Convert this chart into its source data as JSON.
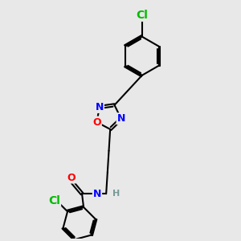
{
  "bg_color": "#e8e8e8",
  "bond_color": "#000000",
  "bond_width": 1.5,
  "dbo": 0.055,
  "atom_colors": {
    "N": "#0000ff",
    "O": "#ff0000",
    "Cl": "#00bb00",
    "H": "#7a9999",
    "C": "#000000"
  },
  "fs": 9,
  "fs_cl": 9
}
